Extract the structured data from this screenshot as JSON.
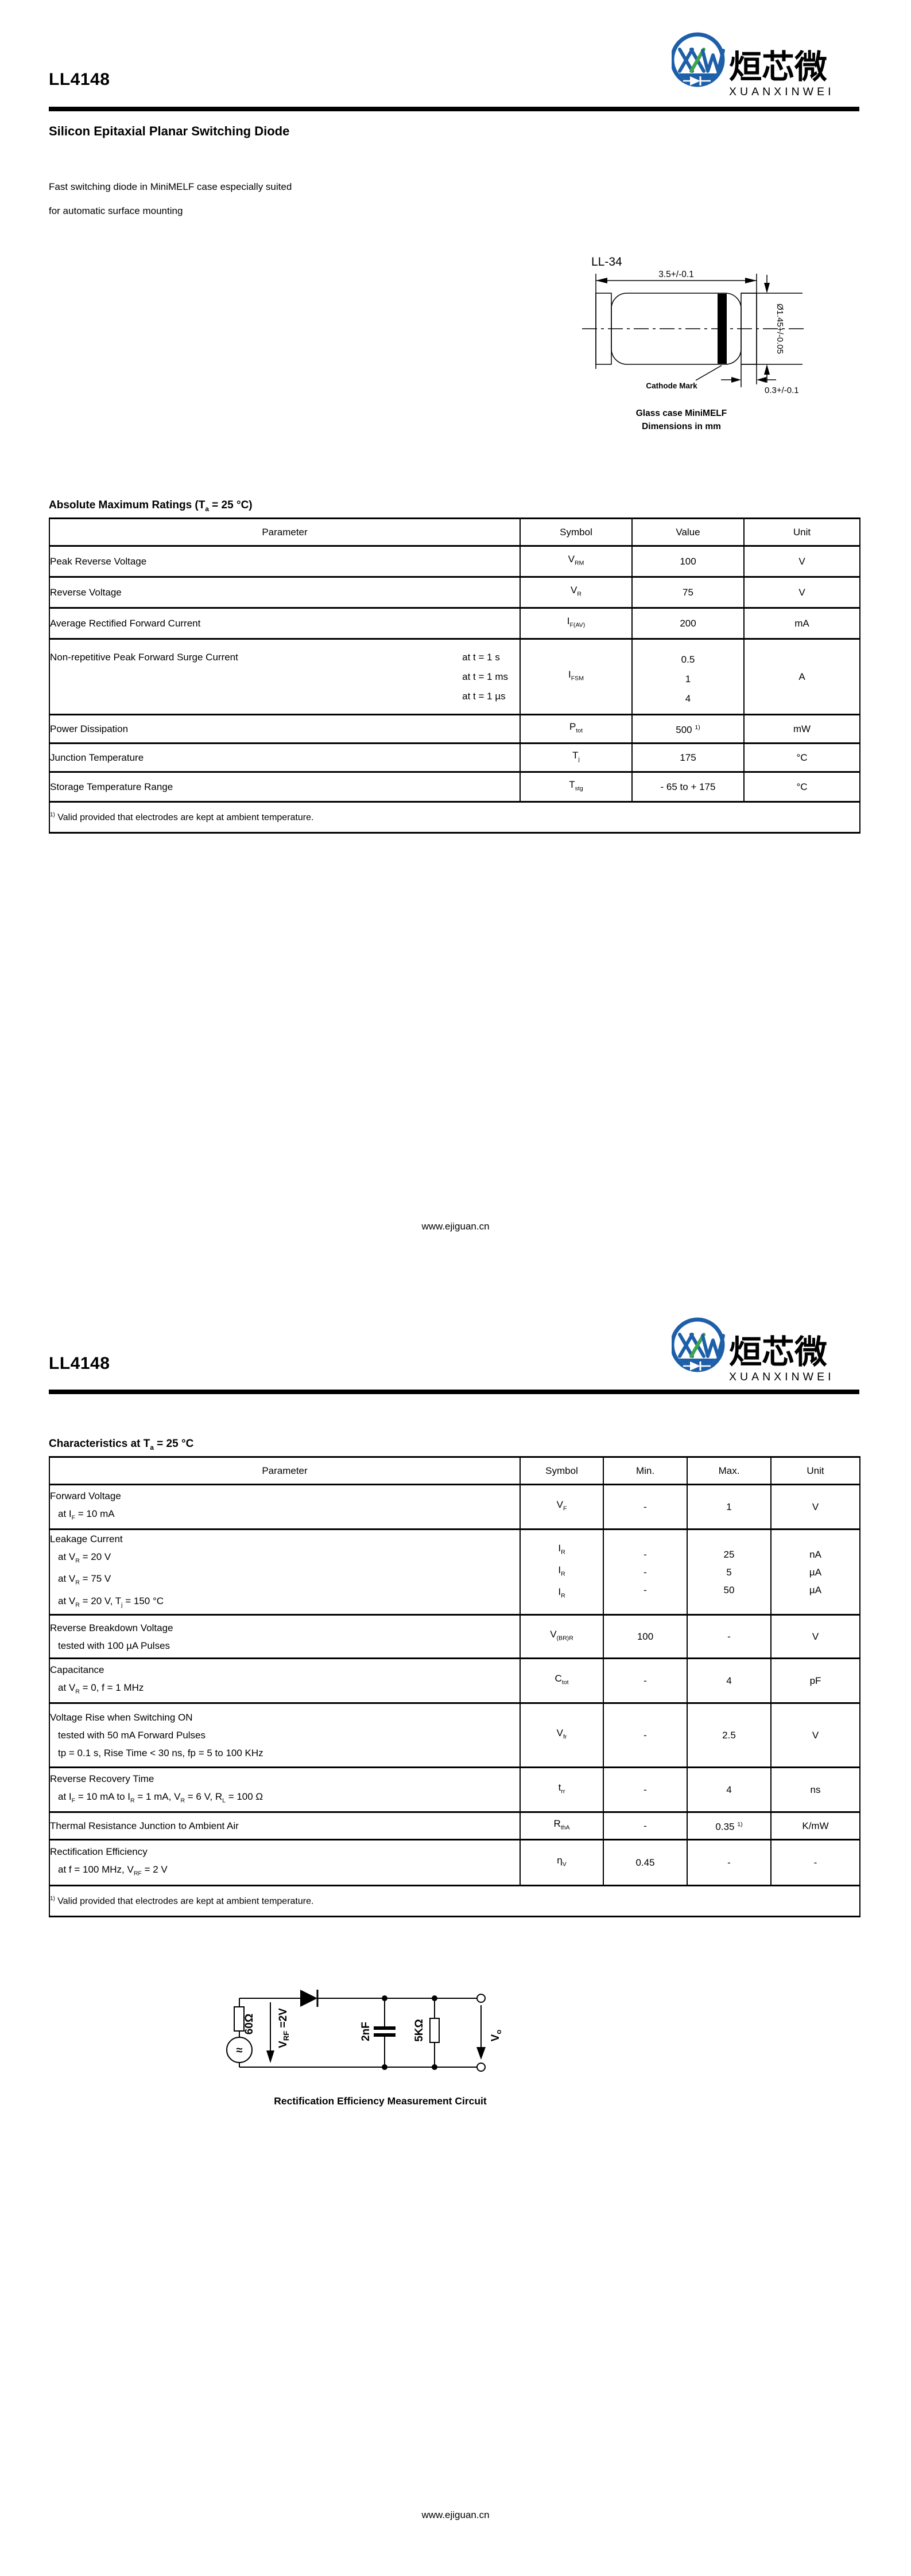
{
  "doc": {
    "part_number": "LL4148",
    "footer_url": "www.ejiguan.cn",
    "logo": {
      "monogram": "XXW",
      "cn_name": "烜芯微",
      "en_name": "XUANXINWEI",
      "blue": "#1d5fa8",
      "green": "#3ea44b"
    }
  },
  "page1": {
    "title": "Silicon Epitaxial Planar Switching Diode",
    "description_lines": [
      "Fast switching diode in MiniMELF case especially suited",
      "for automatic surface mounting"
    ],
    "package": {
      "name": "LL-34",
      "length_dim": "3.5+/-0.1",
      "diameter_dim": "Ø1.45+/-0.05",
      "band_dim": "0.3+/-0.1",
      "cathode_label": "Cathode Mark",
      "caption_line1": "Glass case MiniMELF",
      "caption_line2": "Dimensions in mm"
    },
    "ratings": {
      "heading": [
        {
          "t": "Absolute Maximum Ratings (T"
        },
        {
          "sub": "a"
        },
        {
          "t": " = 25 °C)"
        }
      ],
      "columns": [
        "Parameter",
        "Symbol",
        "Value",
        "Unit"
      ],
      "rows": {
        "peak_reverse_voltage": {
          "param": "Peak Reverse Voltage",
          "symbol": [
            {
              "t": "V"
            },
            {
              "sub": "RM"
            }
          ],
          "value": "100",
          "unit": "V"
        },
        "reverse_voltage": {
          "param": "Reverse Voltage",
          "symbol": [
            {
              "t": "V"
            },
            {
              "sub": "R"
            }
          ],
          "value": "75",
          "unit": "V"
        },
        "average_rectified_forward_current": {
          "param": "Average Rectified Forward Current",
          "symbol": [
            {
              "t": "I"
            },
            {
              "sub": "F(AV)"
            }
          ],
          "value": "200",
          "unit": "mA"
        },
        "surge_current": {
          "param": "Non-repetitive Peak Forward Surge Current",
          "cond1": "at t = 1 s",
          "cond2": "at t = 1 ms",
          "cond3": "at t = 1 µs",
          "symbol": [
            {
              "t": "I"
            },
            {
              "sub": "FSM"
            }
          ],
          "value1": "0.5",
          "value2": "1",
          "value3": "4",
          "unit": "A"
        },
        "power_dissipation": {
          "param": "Power Dissipation",
          "symbol": [
            {
              "t": "P"
            },
            {
              "sub": "tot"
            }
          ],
          "value": [
            {
              "t": "500 "
            },
            {
              "sup": "1)"
            }
          ],
          "unit": "mW"
        },
        "junction_temperature": {
          "param": "Junction Temperature",
          "symbol": [
            {
              "t": "T"
            },
            {
              "sub": "j"
            }
          ],
          "value": "175",
          "unit": "°C"
        },
        "storage_temperature": {
          "param": "Storage Temperature Range",
          "symbol": [
            {
              "t": "T"
            },
            {
              "sub": "stg"
            }
          ],
          "value": "- 65 to + 175",
          "unit": "°C"
        }
      },
      "footnote": [
        {
          "sup": "1)"
        },
        {
          "t": " Valid provided that electrodes are kept at ambient temperature."
        }
      ]
    }
  },
  "page2": {
    "characteristics": {
      "heading": [
        {
          "t": "Characteristics at T"
        },
        {
          "sub": "a"
        },
        {
          "t": " = 25 °C"
        }
      ],
      "columns": [
        "Parameter",
        "Symbol",
        "Min.",
        "Max.",
        "Unit"
      ],
      "rows": {
        "forward_voltage": {
          "line1": "Forward Voltage",
          "line2": [
            {
              "t": "at I"
            },
            {
              "sub": "F"
            },
            {
              "t": " = 10 mA"
            }
          ],
          "symbol": [
            {
              "t": "V"
            },
            {
              "sub": "F"
            }
          ],
          "min": "-",
          "max": "1",
          "unit": "V"
        },
        "leakage_current": {
          "line1": "Leakage Current",
          "line2": [
            {
              "t": "at V"
            },
            {
              "sub": "R"
            },
            {
              "t": " = 20 V"
            }
          ],
          "line3": [
            {
              "t": "at V"
            },
            {
              "sub": "R"
            },
            {
              "t": " = 75 V"
            }
          ],
          "line4": [
            {
              "t": "at V"
            },
            {
              "sub": "R"
            },
            {
              "t": " = 20 V, T"
            },
            {
              "sub": "j"
            },
            {
              "t": " = 150 °C"
            }
          ],
          "symbol": [
            {
              "t": "I"
            },
            {
              "sub": "R"
            }
          ],
          "min1": "-",
          "min2": "-",
          "min3": "-",
          "max1": "25",
          "max2": "5",
          "max3": "50",
          "unit1": "nA",
          "unit2": "µA",
          "unit3": "µA"
        },
        "reverse_breakdown": {
          "line1": "Reverse Breakdown Voltage",
          "line2": "tested with 100 µA Pulses",
          "symbol": [
            {
              "t": "V"
            },
            {
              "sub": "(BR)R"
            }
          ],
          "min": "100",
          "max": "-",
          "unit": "V"
        },
        "capacitance": {
          "line1": "Capacitance",
          "line2": [
            {
              "t": "at V"
            },
            {
              "sub": "R"
            },
            {
              "t": " = 0, f = 1 MHz"
            }
          ],
          "symbol": [
            {
              "t": "C"
            },
            {
              "sub": "tot"
            }
          ],
          "min": "-",
          "max": "4",
          "unit": "pF"
        },
        "voltage_rise": {
          "line1": "Voltage Rise when Switching ON",
          "line2": "tested with 50 mA Forward Pulses",
          "line3": "tp = 0.1 s, Rise Time < 30 ns, fp = 5 to 100 KHz",
          "symbol": [
            {
              "t": "V"
            },
            {
              "sub": "fr"
            }
          ],
          "min": "-",
          "max": "2.5",
          "unit": "V"
        },
        "reverse_recovery": {
          "line1": "Reverse Recovery Time",
          "line2": [
            {
              "t": "at I"
            },
            {
              "sub": "F"
            },
            {
              "t": " = 10 mA to I"
            },
            {
              "sub": "R"
            },
            {
              "t": " = 1 mA, V"
            },
            {
              "sub": "R"
            },
            {
              "t": " = 6 V, R"
            },
            {
              "sub": "L"
            },
            {
              "t": " = 100 Ω"
            }
          ],
          "symbol": [
            {
              "t": "t"
            },
            {
              "sub": "rr"
            }
          ],
          "min": "-",
          "max": "4",
          "unit": "ns"
        },
        "thermal_resistance": {
          "line1": "Thermal Resistance Junction to Ambient Air",
          "symbol": [
            {
              "t": "R"
            },
            {
              "sub": "thA"
            }
          ],
          "min": "-",
          "max": [
            {
              "t": "0.35 "
            },
            {
              "sup": "1)"
            }
          ],
          "unit": "K/mW"
        },
        "rectification_efficiency": {
          "line1": "Rectification Efficiency",
          "line2": [
            {
              "t": "at f = 100 MHz, V"
            },
            {
              "sub": "RF"
            },
            {
              "t": " = 2 V"
            }
          ],
          "symbol": [
            {
              "t": "η"
            },
            {
              "sub": "V"
            }
          ],
          "min": "0.45",
          "max": "-",
          "unit": "-"
        }
      },
      "footnote": [
        {
          "sup": "1)"
        },
        {
          "t": " Valid provided that electrodes are kept at ambient temperature."
        }
      ]
    },
    "circuit": {
      "source_symbol": "≈",
      "source_resistor": "60Ω",
      "vrf_base": "V",
      "vrf_sub": "RF",
      "vrf_rest": " =2V",
      "capacitor": "2nF",
      "load_resistor": "5KΩ",
      "vo_base": "V",
      "vo_sub": "o",
      "caption": "Rectification Efficiency Measurement Circuit"
    }
  }
}
